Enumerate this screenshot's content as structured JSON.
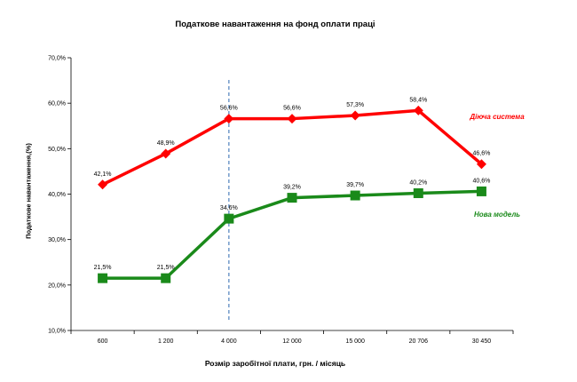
{
  "chart_data": {
    "type": "line",
    "title": "Податкове навантаження на фонд оплати праці",
    "xlabel": "Розмір заробітної  плати, грн. / місяць",
    "ylabel": "Податкове навантаження,(%)",
    "categories": [
      "600",
      "1 200",
      "4 000",
      "12 000",
      "15 000",
      "20 706",
      "30 450"
    ],
    "ylim": [
      10,
      70
    ],
    "yticks": [
      "10,0%",
      "20,0%",
      "30,0%",
      "40,0%",
      "50,0%",
      "60,0%",
      "70,0%"
    ],
    "grid": false,
    "vertical_reference_line": {
      "category": "4 000",
      "style": "dashed",
      "color": "#4f81bd"
    },
    "series": [
      {
        "name": "Діюча система",
        "color": "#ff0000",
        "marker": "diamond",
        "values": [
          42.1,
          48.9,
          56.6,
          56.6,
          57.3,
          58.4,
          46.6
        ],
        "labels": [
          "42,1%",
          "48,9%",
          "56,6%",
          "56,6%",
          "57,3%",
          "58,4%",
          "46,6%"
        ]
      },
      {
        "name": "Нова модель",
        "color": "#1a8a1a",
        "marker": "square",
        "values": [
          21.5,
          21.5,
          34.6,
          39.2,
          39.7,
          40.2,
          40.6
        ],
        "labels": [
          "21,5%",
          "21,5%",
          "34,6%",
          "39,2%",
          "39,7%",
          "40,2%",
          "40,6%"
        ]
      }
    ]
  }
}
